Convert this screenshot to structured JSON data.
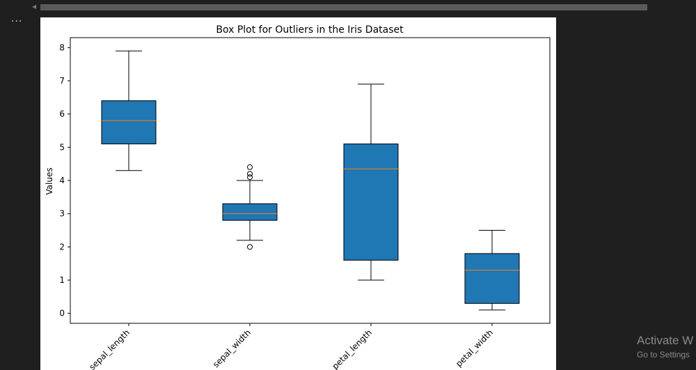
{
  "editor": {
    "output_menu_glyph": "..."
  },
  "os_watermark": {
    "title": "Activate W",
    "subtitle": "Go to Settings"
  },
  "chart_data": {
    "type": "boxplot",
    "title": "Box Plot for Outliers in the Iris Dataset",
    "xlabel": "",
    "ylabel": "Values",
    "ylim": [
      -0.3,
      8.3
    ],
    "yticks": [
      0,
      1,
      2,
      3,
      4,
      5,
      6,
      7,
      8
    ],
    "categories": [
      "sepal_length",
      "sepal_width",
      "petal_length",
      "petal_width"
    ],
    "box_color": "#1f77b4",
    "median_color": "#ff7f0e",
    "series": [
      {
        "name": "sepal_length",
        "whisker_low": 4.3,
        "q1": 5.1,
        "median": 5.8,
        "q3": 6.4,
        "whisker_high": 7.9,
        "outliers": []
      },
      {
        "name": "sepal_width",
        "whisker_low": 2.2,
        "q1": 2.8,
        "median": 3.0,
        "q3": 3.3,
        "whisker_high": 4.0,
        "outliers": [
          2.0,
          4.1,
          4.2,
          4.4
        ]
      },
      {
        "name": "petal_length",
        "whisker_low": 1.0,
        "q1": 1.6,
        "median": 4.35,
        "q3": 5.1,
        "whisker_high": 6.9,
        "outliers": []
      },
      {
        "name": "petal_width",
        "whisker_low": 0.1,
        "q1": 0.3,
        "median": 1.3,
        "q3": 1.8,
        "whisker_high": 2.5,
        "outliers": []
      }
    ]
  }
}
